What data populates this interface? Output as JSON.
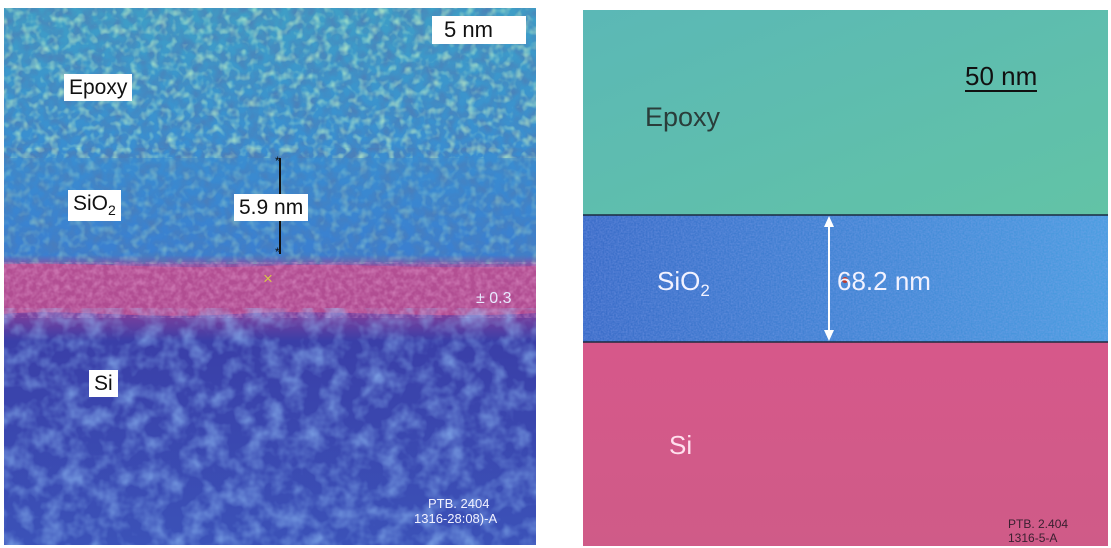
{
  "left_panel": {
    "scale_bar": "5 nm",
    "labels": {
      "epoxy": "Epoxy",
      "sio2_base": "SiO",
      "sio2_sub": "2",
      "si": "Si"
    },
    "thickness": "5.9 nm",
    "tolerance": "± 0.3",
    "footer": {
      "line1": "PTB. 2404",
      "line2": "1316-28:08)-A"
    },
    "colors": {
      "epoxy": "#4fa8b8",
      "sio2": "#3c7ed0",
      "interface": "#b14f8b",
      "si": "#3a48b0"
    }
  },
  "right_panel": {
    "scale_bar": "50 nm",
    "labels": {
      "epoxy": "Epoxy",
      "sio2_base": "SiO",
      "sio2_sub": "2",
      "si": "Si"
    },
    "thickness": "68.2 nm",
    "footer": {
      "line1": "PTB. 2.404",
      "line2": "1316-5-A"
    },
    "colors": {
      "epoxy": "#5cc0b2",
      "sio2": "#3f7ed8",
      "si": "#d45a88"
    }
  }
}
